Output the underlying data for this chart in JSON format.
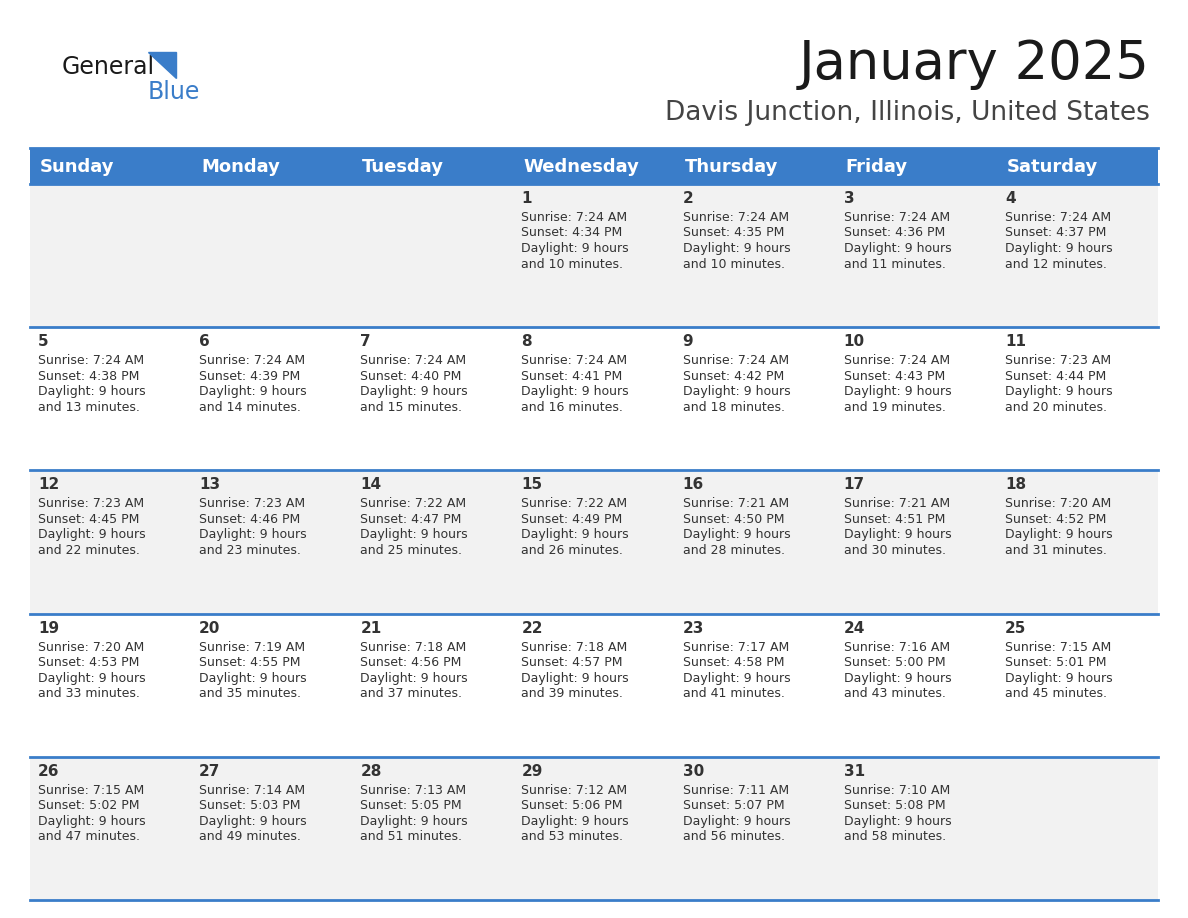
{
  "title": "January 2025",
  "subtitle": "Davis Junction, Illinois, United States",
  "days_of_week": [
    "Sunday",
    "Monday",
    "Tuesday",
    "Wednesday",
    "Thursday",
    "Friday",
    "Saturday"
  ],
  "header_bg": "#3A7DC9",
  "header_text_color": "#FFFFFF",
  "row_bg_odd": "#F2F2F2",
  "row_bg_even": "#FFFFFF",
  "cell_text_color": "#333333",
  "divider_color": "#3A7DC9",
  "days": [
    {
      "day": 1,
      "col": 3,
      "row": 0,
      "sunrise": "7:24 AM",
      "sunset": "4:34 PM",
      "daylight_h": "9 hours",
      "daylight_m": "and 10 minutes."
    },
    {
      "day": 2,
      "col": 4,
      "row": 0,
      "sunrise": "7:24 AM",
      "sunset": "4:35 PM",
      "daylight_h": "9 hours",
      "daylight_m": "and 10 minutes."
    },
    {
      "day": 3,
      "col": 5,
      "row": 0,
      "sunrise": "7:24 AM",
      "sunset": "4:36 PM",
      "daylight_h": "9 hours",
      "daylight_m": "and 11 minutes."
    },
    {
      "day": 4,
      "col": 6,
      "row": 0,
      "sunrise": "7:24 AM",
      "sunset": "4:37 PM",
      "daylight_h": "9 hours",
      "daylight_m": "and 12 minutes."
    },
    {
      "day": 5,
      "col": 0,
      "row": 1,
      "sunrise": "7:24 AM",
      "sunset": "4:38 PM",
      "daylight_h": "9 hours",
      "daylight_m": "and 13 minutes."
    },
    {
      "day": 6,
      "col": 1,
      "row": 1,
      "sunrise": "7:24 AM",
      "sunset": "4:39 PM",
      "daylight_h": "9 hours",
      "daylight_m": "and 14 minutes."
    },
    {
      "day": 7,
      "col": 2,
      "row": 1,
      "sunrise": "7:24 AM",
      "sunset": "4:40 PM",
      "daylight_h": "9 hours",
      "daylight_m": "and 15 minutes."
    },
    {
      "day": 8,
      "col": 3,
      "row": 1,
      "sunrise": "7:24 AM",
      "sunset": "4:41 PM",
      "daylight_h": "9 hours",
      "daylight_m": "and 16 minutes."
    },
    {
      "day": 9,
      "col": 4,
      "row": 1,
      "sunrise": "7:24 AM",
      "sunset": "4:42 PM",
      "daylight_h": "9 hours",
      "daylight_m": "and 18 minutes."
    },
    {
      "day": 10,
      "col": 5,
      "row": 1,
      "sunrise": "7:24 AM",
      "sunset": "4:43 PM",
      "daylight_h": "9 hours",
      "daylight_m": "and 19 minutes."
    },
    {
      "day": 11,
      "col": 6,
      "row": 1,
      "sunrise": "7:23 AM",
      "sunset": "4:44 PM",
      "daylight_h": "9 hours",
      "daylight_m": "and 20 minutes."
    },
    {
      "day": 12,
      "col": 0,
      "row": 2,
      "sunrise": "7:23 AM",
      "sunset": "4:45 PM",
      "daylight_h": "9 hours",
      "daylight_m": "and 22 minutes."
    },
    {
      "day": 13,
      "col": 1,
      "row": 2,
      "sunrise": "7:23 AM",
      "sunset": "4:46 PM",
      "daylight_h": "9 hours",
      "daylight_m": "and 23 minutes."
    },
    {
      "day": 14,
      "col": 2,
      "row": 2,
      "sunrise": "7:22 AM",
      "sunset": "4:47 PM",
      "daylight_h": "9 hours",
      "daylight_m": "and 25 minutes."
    },
    {
      "day": 15,
      "col": 3,
      "row": 2,
      "sunrise": "7:22 AM",
      "sunset": "4:49 PM",
      "daylight_h": "9 hours",
      "daylight_m": "and 26 minutes."
    },
    {
      "day": 16,
      "col": 4,
      "row": 2,
      "sunrise": "7:21 AM",
      "sunset": "4:50 PM",
      "daylight_h": "9 hours",
      "daylight_m": "and 28 minutes."
    },
    {
      "day": 17,
      "col": 5,
      "row": 2,
      "sunrise": "7:21 AM",
      "sunset": "4:51 PM",
      "daylight_h": "9 hours",
      "daylight_m": "and 30 minutes."
    },
    {
      "day": 18,
      "col": 6,
      "row": 2,
      "sunrise": "7:20 AM",
      "sunset": "4:52 PM",
      "daylight_h": "9 hours",
      "daylight_m": "and 31 minutes."
    },
    {
      "day": 19,
      "col": 0,
      "row": 3,
      "sunrise": "7:20 AM",
      "sunset": "4:53 PM",
      "daylight_h": "9 hours",
      "daylight_m": "and 33 minutes."
    },
    {
      "day": 20,
      "col": 1,
      "row": 3,
      "sunrise": "7:19 AM",
      "sunset": "4:55 PM",
      "daylight_h": "9 hours",
      "daylight_m": "and 35 minutes."
    },
    {
      "day": 21,
      "col": 2,
      "row": 3,
      "sunrise": "7:18 AM",
      "sunset": "4:56 PM",
      "daylight_h": "9 hours",
      "daylight_m": "and 37 minutes."
    },
    {
      "day": 22,
      "col": 3,
      "row": 3,
      "sunrise": "7:18 AM",
      "sunset": "4:57 PM",
      "daylight_h": "9 hours",
      "daylight_m": "and 39 minutes."
    },
    {
      "day": 23,
      "col": 4,
      "row": 3,
      "sunrise": "7:17 AM",
      "sunset": "4:58 PM",
      "daylight_h": "9 hours",
      "daylight_m": "and 41 minutes."
    },
    {
      "day": 24,
      "col": 5,
      "row": 3,
      "sunrise": "7:16 AM",
      "sunset": "5:00 PM",
      "daylight_h": "9 hours",
      "daylight_m": "and 43 minutes."
    },
    {
      "day": 25,
      "col": 6,
      "row": 3,
      "sunrise": "7:15 AM",
      "sunset": "5:01 PM",
      "daylight_h": "9 hours",
      "daylight_m": "and 45 minutes."
    },
    {
      "day": 26,
      "col": 0,
      "row": 4,
      "sunrise": "7:15 AM",
      "sunset": "5:02 PM",
      "daylight_h": "9 hours",
      "daylight_m": "and 47 minutes."
    },
    {
      "day": 27,
      "col": 1,
      "row": 4,
      "sunrise": "7:14 AM",
      "sunset": "5:03 PM",
      "daylight_h": "9 hours",
      "daylight_m": "and 49 minutes."
    },
    {
      "day": 28,
      "col": 2,
      "row": 4,
      "sunrise": "7:13 AM",
      "sunset": "5:05 PM",
      "daylight_h": "9 hours",
      "daylight_m": "and 51 minutes."
    },
    {
      "day": 29,
      "col": 3,
      "row": 4,
      "sunrise": "7:12 AM",
      "sunset": "5:06 PM",
      "daylight_h": "9 hours",
      "daylight_m": "and 53 minutes."
    },
    {
      "day": 30,
      "col": 4,
      "row": 4,
      "sunrise": "7:11 AM",
      "sunset": "5:07 PM",
      "daylight_h": "9 hours",
      "daylight_m": "and 56 minutes."
    },
    {
      "day": 31,
      "col": 5,
      "row": 4,
      "sunrise": "7:10 AM",
      "sunset": "5:08 PM",
      "daylight_h": "9 hours",
      "daylight_m": "and 58 minutes."
    }
  ],
  "logo_color_general": "#1a1a1a",
  "logo_color_blue": "#3A7DC9",
  "title_fontsize": 38,
  "subtitle_fontsize": 19,
  "header_fontsize": 13,
  "day_num_fontsize": 11,
  "cell_fontsize": 9
}
